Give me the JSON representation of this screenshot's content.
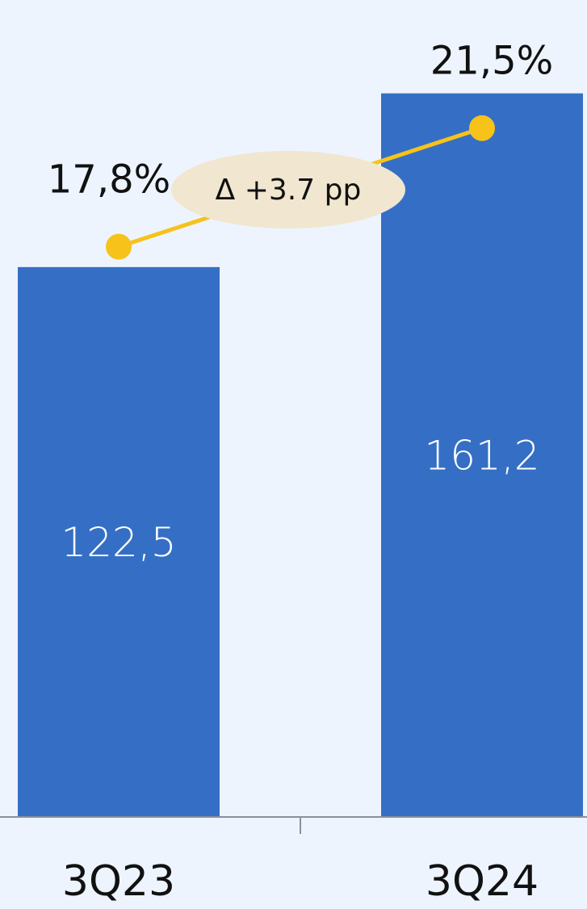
{
  "chart_data": {
    "type": "bar",
    "categories": [
      "3Q23",
      "3Q24"
    ],
    "series": [
      {
        "type": "bar",
        "color": "#356fc5",
        "values": [
          122.5,
          161.2
        ],
        "value_labels": [
          "122,5",
          "161,2"
        ]
      },
      {
        "type": "line",
        "axis": "y2",
        "color": "#f7c21a",
        "values": [
          17.8,
          21.5
        ],
        "value_labels": [
          "17,8%",
          "21,5%"
        ]
      }
    ],
    "annotation": "Δ +3.7 pp",
    "ylim": [
      0,
      182
    ],
    "y2lim": [
      0,
      25.5
    ]
  }
}
